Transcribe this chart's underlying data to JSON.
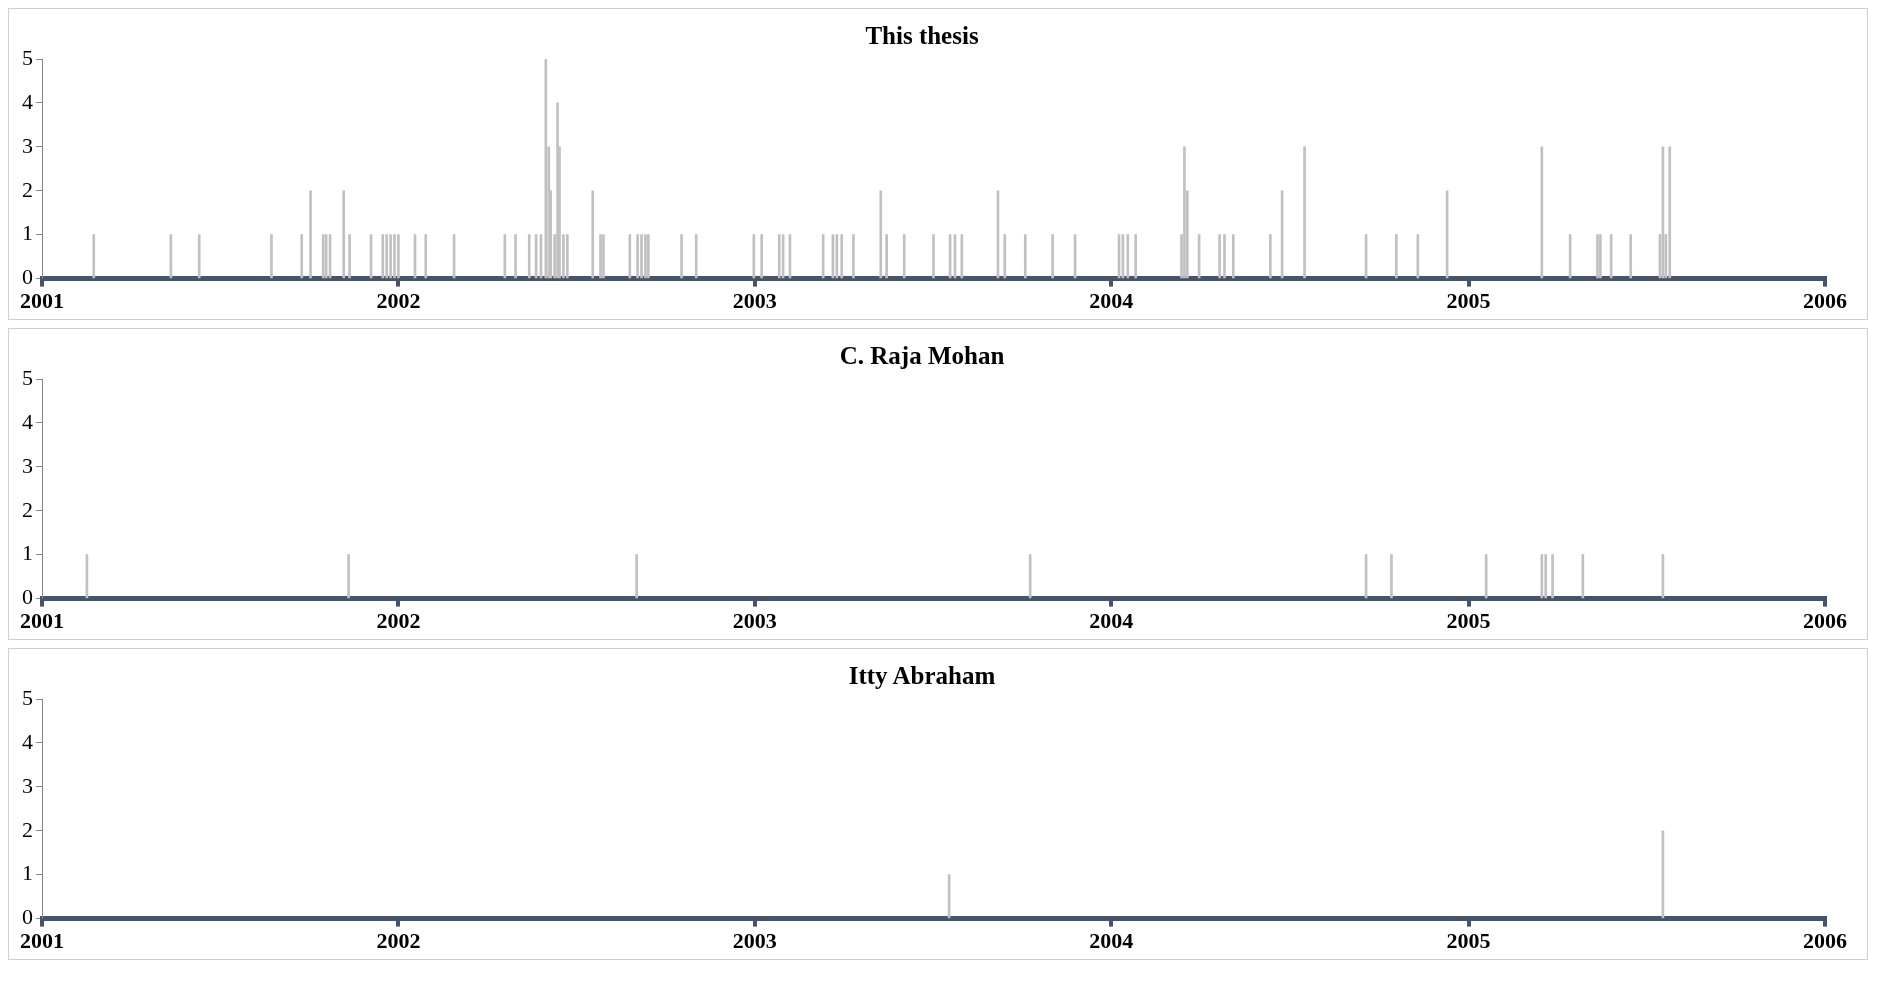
{
  "chart_data": [
    {
      "type": "bar",
      "title": "This thesis",
      "color": "#c0c0c0",
      "xlim": [
        "2001",
        "2006"
      ],
      "xticks": [
        "2001",
        "2002",
        "2003",
        "2004",
        "2005",
        "2006"
      ],
      "ylim": [
        0,
        5
      ],
      "yticks": [
        0,
        1,
        2,
        3,
        4,
        5
      ],
      "x": [
        "2001-02-23",
        "2001-05-13",
        "2001-06-11",
        "2001-08-24",
        "2001-09-24",
        "2001-10-03",
        "2001-10-16",
        "2001-10-19",
        "2001-10-23",
        "2001-11-06",
        "2001-11-12",
        "2001-12-04",
        "2001-12-16",
        "2001-12-20",
        "2001-12-24",
        "2001-12-28",
        "2002-01-01",
        "2002-01-18",
        "2002-01-29",
        "2002-02-27",
        "2002-04-20",
        "2002-05-01",
        "2002-05-15",
        "2002-05-22",
        "2002-05-27",
        "2002-06-01",
        "2002-06-04",
        "2002-06-06",
        "2002-06-10",
        "2002-06-13",
        "2002-06-15",
        "2002-06-19",
        "2002-06-23",
        "2002-07-19",
        "2002-07-27",
        "2002-07-30",
        "2002-08-26",
        "2002-09-03",
        "2002-09-07",
        "2002-09-11",
        "2002-09-14",
        "2002-10-18",
        "2002-11-02",
        "2002-12-31",
        "2003-01-08",
        "2003-01-26",
        "2003-01-30",
        "2003-02-06",
        "2003-03-12",
        "2003-03-22",
        "2003-03-26",
        "2003-03-31",
        "2003-04-12",
        "2003-05-10",
        "2003-05-16",
        "2003-06-03",
        "2003-07-03",
        "2003-07-20",
        "2003-07-25",
        "2003-08-01",
        "2003-09-07",
        "2003-09-14",
        "2003-10-05",
        "2003-11-02",
        "2003-11-25",
        "2004-01-09",
        "2004-01-13",
        "2004-01-18",
        "2004-01-26",
        "2004-03-13",
        "2004-03-16",
        "2004-03-19",
        "2004-03-31",
        "2004-04-21",
        "2004-04-26",
        "2004-05-05",
        "2004-06-12",
        "2004-06-24",
        "2004-07-17",
        "2004-09-18",
        "2004-10-19",
        "2004-11-10",
        "2004-12-10",
        "2005-03-17",
        "2005-04-15",
        "2005-05-13",
        "2005-05-16",
        "2005-05-27",
        "2005-06-16",
        "2005-07-16",
        "2005-07-19",
        "2005-07-22",
        "2005-07-26"
      ],
      "values": [
        1,
        1,
        1,
        1,
        1,
        2,
        1,
        1,
        1,
        2,
        1,
        1,
        1,
        1,
        1,
        1,
        1,
        1,
        1,
        1,
        1,
        1,
        1,
        1,
        1,
        5,
        3,
        2,
        1,
        4,
        3,
        1,
        1,
        2,
        1,
        1,
        1,
        1,
        1,
        1,
        1,
        1,
        1,
        1,
        1,
        1,
        1,
        1,
        1,
        1,
        1,
        1,
        1,
        2,
        1,
        1,
        1,
        1,
        1,
        1,
        2,
        1,
        1,
        1,
        1,
        1,
        1,
        1,
        1,
        1,
        3,
        2,
        1,
        1,
        1,
        1,
        1,
        2,
        3,
        1,
        1,
        1,
        2,
        3,
        1,
        1,
        1,
        1,
        1,
        1,
        3,
        1,
        3
      ]
    },
    {
      "type": "bar",
      "title": "C. Raja Mohan",
      "color": "#c0c0c0",
      "xlim": [
        "2001",
        "2006"
      ],
      "xticks": [
        "2001",
        "2002",
        "2003",
        "2004",
        "2005",
        "2006"
      ],
      "ylim": [
        0,
        5
      ],
      "yticks": [
        0,
        1,
        2,
        3,
        4,
        5
      ],
      "x": [
        "2001-02-16",
        "2001-11-11",
        "2002-09-02",
        "2003-10-10",
        "2004-09-18",
        "2004-10-14",
        "2005-01-19",
        "2005-03-17",
        "2005-03-21",
        "2005-03-28",
        "2005-04-28",
        "2005-07-19"
      ],
      "values": [
        1,
        1,
        1,
        1,
        1,
        1,
        1,
        1,
        1,
        1,
        1,
        1
      ]
    },
    {
      "type": "bar",
      "title": "Itty Abraham",
      "color": "#c0c0c0",
      "xlim": [
        "2001",
        "2006"
      ],
      "xticks": [
        "2001",
        "2002",
        "2003",
        "2004",
        "2005",
        "2006"
      ],
      "ylim": [
        0,
        5
      ],
      "yticks": [
        0,
        1,
        2,
        3,
        4,
        5
      ],
      "x": [
        "2003-07-19",
        "2005-07-19"
      ],
      "values": [
        1,
        2
      ]
    }
  ]
}
